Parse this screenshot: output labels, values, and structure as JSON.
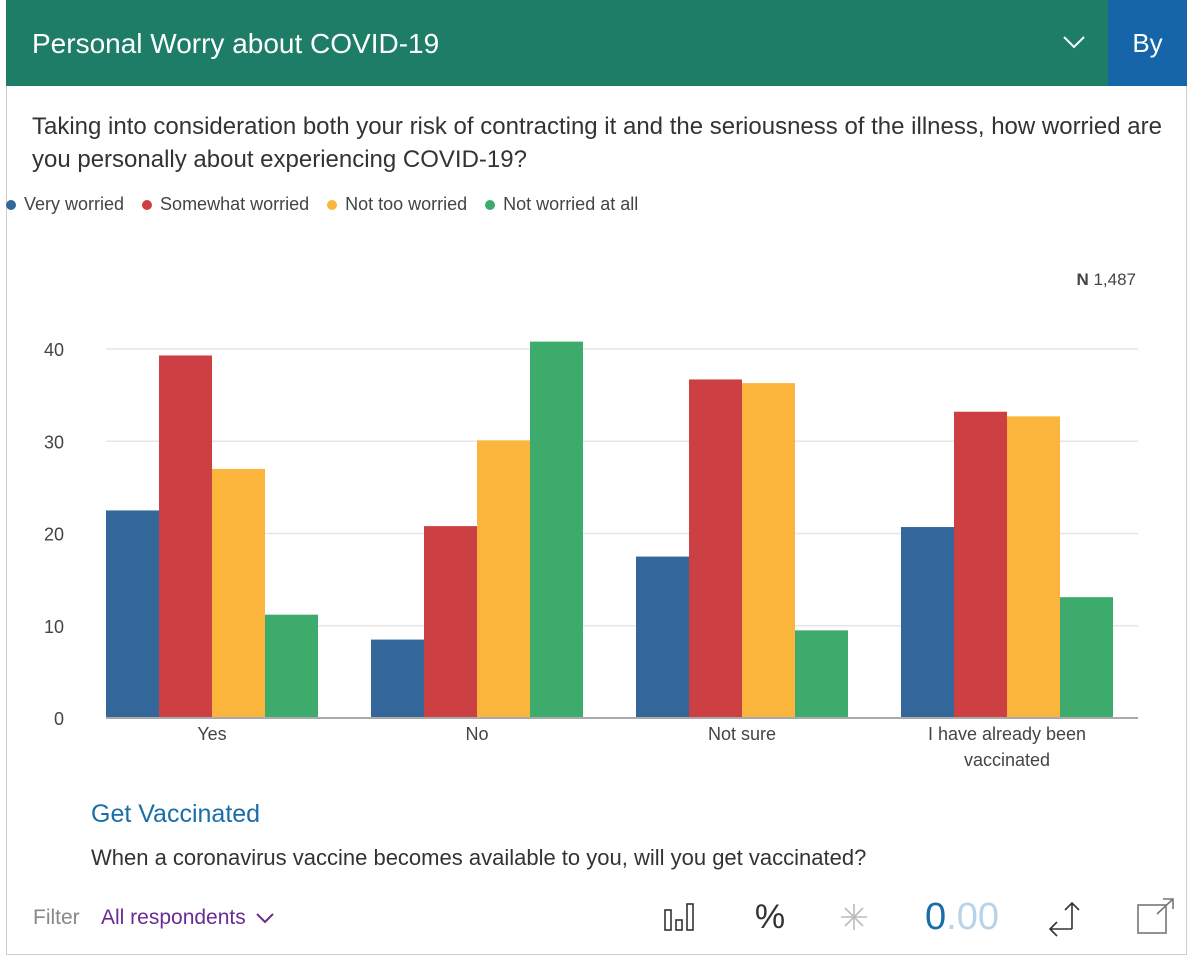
{
  "header": {
    "title": "Personal Worry about COVID-19",
    "by_label": "By"
  },
  "question": "Taking into consideration both your risk of contracting it and the seriousness of the illness, how worried are you personally about experiencing COVID-19?",
  "n_label": "N",
  "n_value": "1,487",
  "chart_data": {
    "type": "bar",
    "title": "Personal Worry about COVID-19",
    "categories": [
      "Yes",
      "No",
      "Not sure",
      "I have already been vaccinated"
    ],
    "category_lines": [
      [
        "Yes"
      ],
      [
        "No"
      ],
      [
        "Not sure"
      ],
      [
        "I have already been",
        "vaccinated"
      ]
    ],
    "series": [
      {
        "name": "Very worried",
        "color": "#336699",
        "values": [
          22.5,
          8.5,
          17.5,
          20.7
        ]
      },
      {
        "name": "Somewhat worried",
        "color": "#cc3f42",
        "values": [
          39.3,
          20.8,
          36.7,
          33.2
        ]
      },
      {
        "name": "Not too worried",
        "color": "#fbb43c",
        "values": [
          27.0,
          30.1,
          36.3,
          32.7
        ]
      },
      {
        "name": "Not worried at all",
        "color": "#3dab6c",
        "values": [
          11.2,
          40.8,
          9.5,
          13.1
        ]
      }
    ],
    "ylim": [
      0,
      40
    ],
    "yticks": [
      "0",
      "10",
      "20",
      "30",
      "40"
    ],
    "xlabel": "",
    "ylabel": "",
    "grid": true,
    "legend": "top-left"
  },
  "next": {
    "title": "Get Vaccinated",
    "question": "When a coronavirus vaccine becomes available to you, will you get vaccinated?"
  },
  "footer": {
    "filter_label": "Filter",
    "filter_value": "All respondents",
    "percent": "%",
    "decimals_int": "0",
    "decimals_frac": ".00"
  }
}
